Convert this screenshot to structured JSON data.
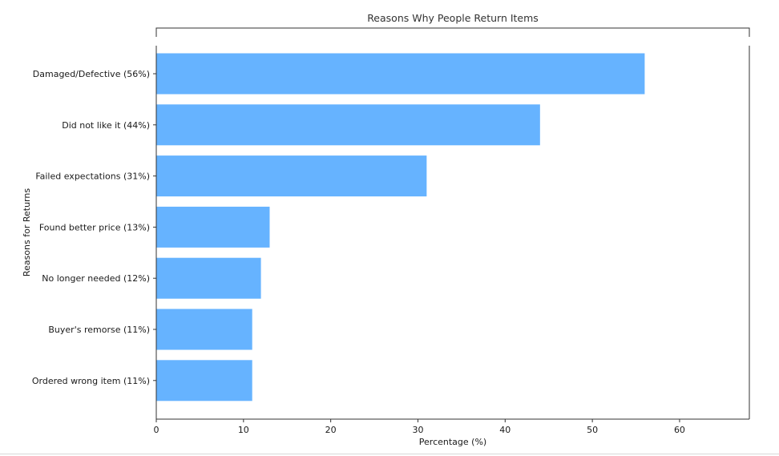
{
  "chart_data": {
    "type": "bar",
    "orientation": "horizontal",
    "title": "Reasons Why People Return Items",
    "xlabel": "Percentage (%)",
    "ylabel": "Reasons for Returns",
    "categories": [
      "Damaged/Defective (56%)",
      "Did not like it (44%)",
      "Failed expectations (31%)",
      "Found better price (13%)",
      "No longer needed (12%)",
      "Buyer's remorse (11%)",
      "Ordered wrong item (11%)"
    ],
    "values": [
      56,
      44,
      31,
      13,
      12,
      11,
      11
    ],
    "xlim": [
      0,
      68
    ],
    "xticks": [
      0,
      10,
      20,
      30,
      40,
      50,
      60
    ],
    "grid": false,
    "bar_color": "#66b3ff",
    "axis_color": "#333333"
  }
}
